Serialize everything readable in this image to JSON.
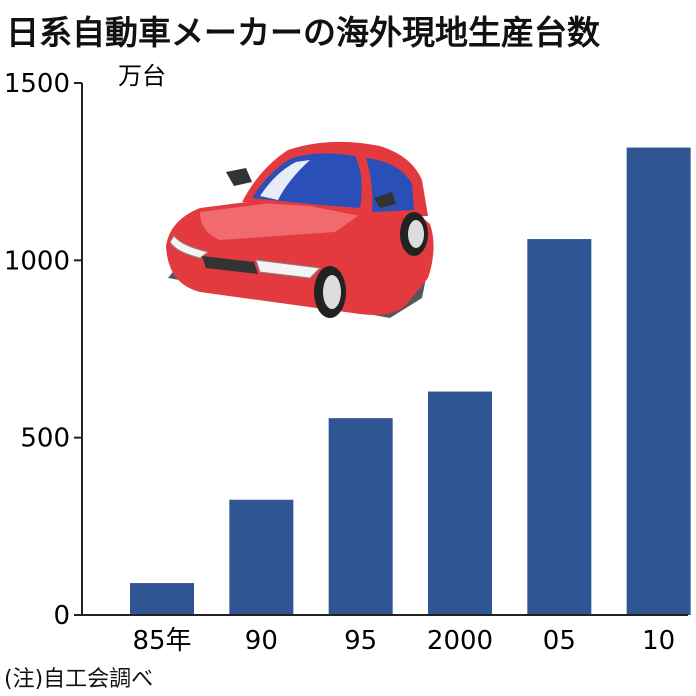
{
  "title": "日系自動車メーカーの海外現地生産台数",
  "source_note": "(注)自工会調べ",
  "colors": {
    "bar": "#2f5593",
    "axis": "#222222",
    "car_body": "#e23a3f",
    "car_glass": "#2b4fb8"
  },
  "illustration": "car-icon",
  "chart_data": {
    "type": "bar",
    "title": "日系自動車メーカーの海外現地生産台数",
    "ylabel": "万台",
    "xlabel": "",
    "categories": [
      "85年",
      "90",
      "95",
      "2000",
      "05",
      "10"
    ],
    "values": [
      90,
      325,
      555,
      630,
      1060,
      1318
    ],
    "ylim": [
      0,
      1500
    ],
    "yticks": [
      0,
      500,
      1000,
      1500
    ],
    "grid": false,
    "legend": "none"
  }
}
